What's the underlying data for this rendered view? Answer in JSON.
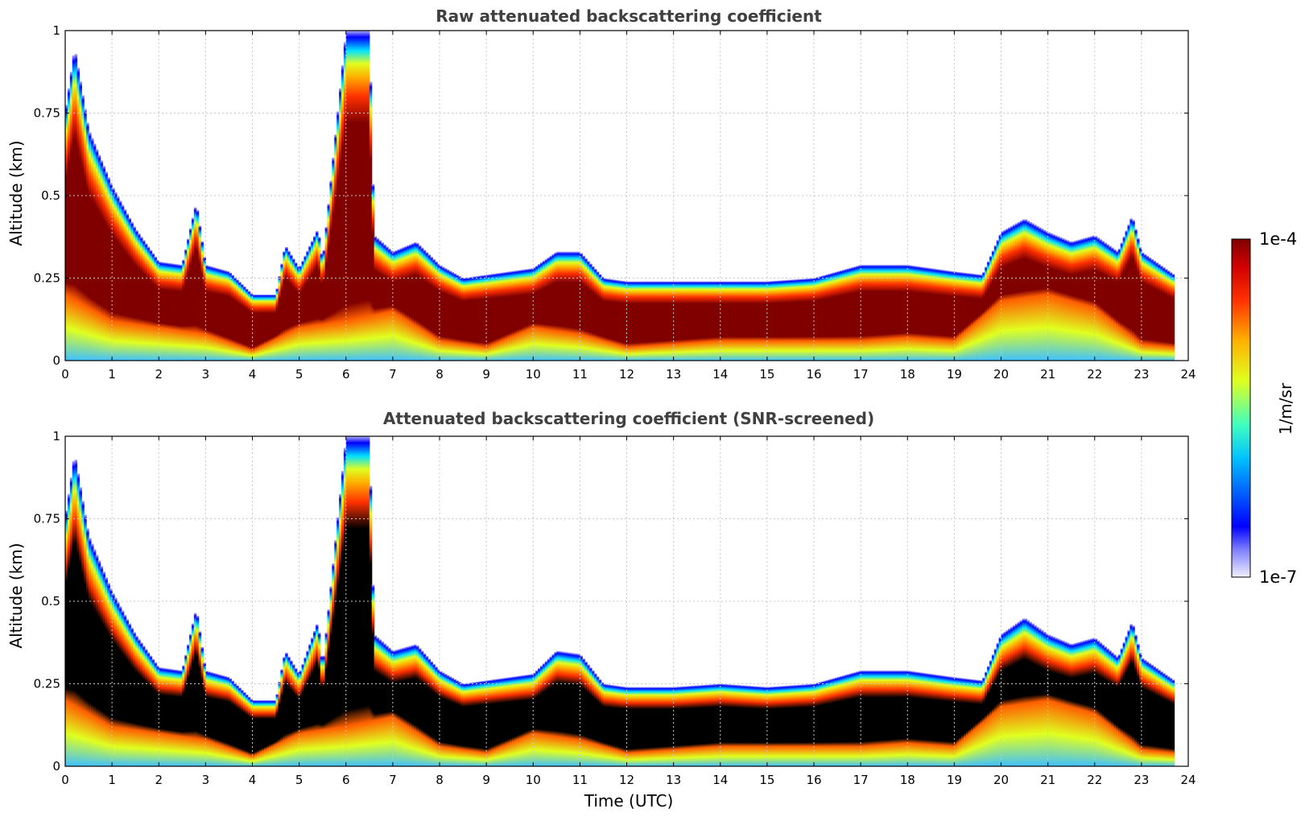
{
  "figure": {
    "xlabel": "Time (UTC)",
    "colorbar": {
      "label": "1/m/sr",
      "max_label": "1e-4",
      "min_label": "1e-7",
      "scale": "log",
      "range": [
        1e-07,
        0.0001
      ],
      "colormap": "jet"
    }
  },
  "chart_data": [
    {
      "type": "heatmap",
      "title": "Raw attenuated backscattering coefficient",
      "xlabel": "",
      "ylabel": "Altitude (km)",
      "xlim": [
        0,
        24
      ],
      "ylim": [
        0,
        1
      ],
      "xticks": [
        "0",
        "1",
        "2",
        "3",
        "4",
        "5",
        "6",
        "7",
        "8",
        "9",
        "10",
        "11",
        "12",
        "13",
        "14",
        "15",
        "16",
        "17",
        "18",
        "19",
        "20",
        "21",
        "22",
        "23",
        "24"
      ],
      "yticks": [
        "0",
        "0.25",
        "0.5",
        "0.75",
        "1"
      ],
      "grid": true,
      "saturated_color": "#800000",
      "layer_top_km": [
        [
          0,
          0.75
        ],
        [
          0.2,
          0.95
        ],
        [
          0.5,
          0.7
        ],
        [
          1,
          0.53
        ],
        [
          1.5,
          0.4
        ],
        [
          2,
          0.3
        ],
        [
          2.5,
          0.29
        ],
        [
          2.8,
          0.48
        ],
        [
          3,
          0.29
        ],
        [
          3.5,
          0.27
        ],
        [
          4,
          0.2
        ],
        [
          4.5,
          0.2
        ],
        [
          4.7,
          0.35
        ],
        [
          5,
          0.28
        ],
        [
          5.4,
          0.4
        ],
        [
          5.5,
          0.3
        ],
        [
          6,
          1.0
        ],
        [
          6.5,
          1.0
        ],
        [
          6.6,
          0.38
        ],
        [
          7,
          0.33
        ],
        [
          7.5,
          0.36
        ],
        [
          8,
          0.29
        ],
        [
          8.5,
          0.25
        ],
        [
          9,
          0.26
        ],
        [
          10,
          0.28
        ],
        [
          10.5,
          0.33
        ],
        [
          11,
          0.33
        ],
        [
          11.5,
          0.25
        ],
        [
          12,
          0.24
        ],
        [
          13,
          0.24
        ],
        [
          14,
          0.24
        ],
        [
          15,
          0.24
        ],
        [
          16,
          0.25
        ],
        [
          17,
          0.29
        ],
        [
          18,
          0.29
        ],
        [
          19,
          0.27
        ],
        [
          19.6,
          0.26
        ],
        [
          20,
          0.39
        ],
        [
          20.5,
          0.43
        ],
        [
          21,
          0.39
        ],
        [
          21.5,
          0.36
        ],
        [
          22,
          0.38
        ],
        [
          22.5,
          0.33
        ],
        [
          22.8,
          0.44
        ],
        [
          23,
          0.33
        ],
        [
          23.7,
          0.26
        ]
      ],
      "layer_bottom_km": [
        [
          0,
          0.2
        ],
        [
          1,
          0.12
        ],
        [
          2,
          0.1
        ],
        [
          3,
          0.08
        ],
        [
          4,
          0.03
        ],
        [
          5,
          0.1
        ],
        [
          6,
          0.12
        ],
        [
          7,
          0.15
        ],
        [
          8,
          0.06
        ],
        [
          9,
          0.04
        ],
        [
          10,
          0.1
        ],
        [
          11,
          0.08
        ],
        [
          12,
          0.04
        ],
        [
          14,
          0.06
        ],
        [
          16,
          0.06
        ],
        [
          17,
          0.06
        ],
        [
          18,
          0.07
        ],
        [
          19,
          0.06
        ],
        [
          20,
          0.18
        ],
        [
          21,
          0.2
        ],
        [
          22,
          0.16
        ],
        [
          23,
          0.05
        ],
        [
          23.7,
          0.04
        ]
      ],
      "data_end_utc": 23.7
    },
    {
      "type": "heatmap",
      "title": "Attenuated backscattering coefficient (SNR-screened)",
      "xlabel": "Time (UTC)",
      "ylabel": "Altitude (km)",
      "xlim": [
        0,
        24
      ],
      "ylim": [
        0,
        1
      ],
      "xticks": [
        "0",
        "1",
        "2",
        "3",
        "4",
        "5",
        "6",
        "7",
        "8",
        "9",
        "10",
        "11",
        "12",
        "13",
        "14",
        "15",
        "16",
        "17",
        "18",
        "19",
        "20",
        "21",
        "22",
        "23",
        "24"
      ],
      "yticks": [
        "0",
        "0.25",
        "0.5",
        "0.75",
        "1"
      ],
      "grid": true,
      "saturated_color": "#000000",
      "layer_top_km": [
        [
          0,
          0.75
        ],
        [
          0.2,
          0.95
        ],
        [
          0.5,
          0.7
        ],
        [
          1,
          0.53
        ],
        [
          1.5,
          0.4
        ],
        [
          2,
          0.3
        ],
        [
          2.5,
          0.29
        ],
        [
          2.8,
          0.48
        ],
        [
          3,
          0.29
        ],
        [
          3.5,
          0.27
        ],
        [
          4,
          0.2
        ],
        [
          4.5,
          0.2
        ],
        [
          4.7,
          0.35
        ],
        [
          5,
          0.28
        ],
        [
          5.4,
          0.44
        ],
        [
          5.5,
          0.3
        ],
        [
          6,
          1.0
        ],
        [
          6.5,
          1.0
        ],
        [
          6.6,
          0.4
        ],
        [
          7,
          0.35
        ],
        [
          7.5,
          0.37
        ],
        [
          8,
          0.29
        ],
        [
          8.5,
          0.25
        ],
        [
          9,
          0.26
        ],
        [
          10,
          0.28
        ],
        [
          10.5,
          0.35
        ],
        [
          11,
          0.34
        ],
        [
          11.5,
          0.25
        ],
        [
          12,
          0.24
        ],
        [
          13,
          0.24
        ],
        [
          14,
          0.25
        ],
        [
          15,
          0.24
        ],
        [
          16,
          0.25
        ],
        [
          17,
          0.29
        ],
        [
          18,
          0.29
        ],
        [
          19,
          0.27
        ],
        [
          19.6,
          0.26
        ],
        [
          20,
          0.4
        ],
        [
          20.5,
          0.45
        ],
        [
          21,
          0.4
        ],
        [
          21.5,
          0.37
        ],
        [
          22,
          0.39
        ],
        [
          22.5,
          0.33
        ],
        [
          22.8,
          0.44
        ],
        [
          23,
          0.33
        ],
        [
          23.7,
          0.26
        ]
      ],
      "layer_bottom_km": [
        [
          0,
          0.2
        ],
        [
          1,
          0.12
        ],
        [
          2,
          0.1
        ],
        [
          3,
          0.08
        ],
        [
          4,
          0.03
        ],
        [
          5,
          0.1
        ],
        [
          6,
          0.12
        ],
        [
          7,
          0.15
        ],
        [
          8,
          0.06
        ],
        [
          9,
          0.04
        ],
        [
          10,
          0.1
        ],
        [
          11,
          0.08
        ],
        [
          12,
          0.04
        ],
        [
          14,
          0.06
        ],
        [
          16,
          0.06
        ],
        [
          17,
          0.06
        ],
        [
          18,
          0.07
        ],
        [
          19,
          0.06
        ],
        [
          20,
          0.18
        ],
        [
          21,
          0.2
        ],
        [
          22,
          0.16
        ],
        [
          23,
          0.05
        ],
        [
          23.7,
          0.04
        ]
      ],
      "data_end_utc": 23.7
    }
  ]
}
